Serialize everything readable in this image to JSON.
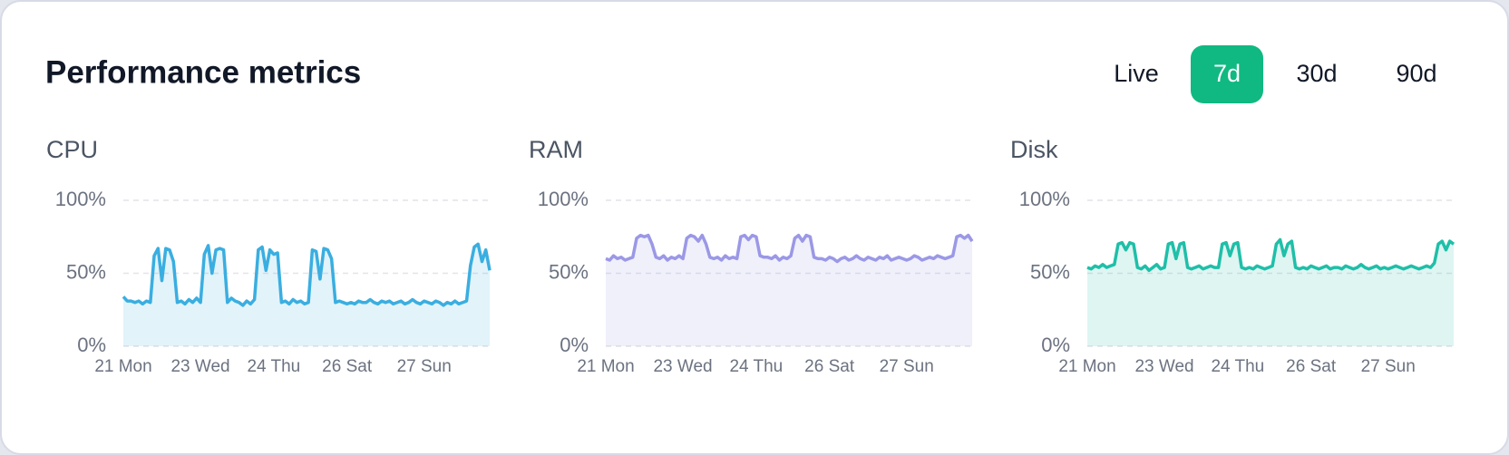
{
  "header": {
    "title": "Performance metrics"
  },
  "tabs": [
    {
      "label": "Live"
    },
    {
      "label": "7d",
      "selected": true
    },
    {
      "label": "30d"
    },
    {
      "label": "90d"
    }
  ],
  "chart_data": [
    {
      "type": "area",
      "title": "CPU",
      "color": "#3aaee0",
      "values": [
        34,
        31,
        31,
        30,
        31,
        29,
        31,
        30,
        62,
        67,
        45,
        67,
        66,
        58,
        30,
        31,
        29,
        32,
        30,
        33,
        30,
        63,
        69,
        50,
        66,
        67,
        66,
        30,
        33,
        31,
        30,
        28,
        31,
        29,
        32,
        66,
        68,
        52,
        66,
        63,
        64,
        30,
        31,
        29,
        32,
        30,
        31,
        29,
        30,
        66,
        65,
        46,
        67,
        66,
        60,
        30,
        31,
        30,
        29,
        30,
        29,
        31,
        30,
        30,
        32,
        30,
        29,
        31,
        30,
        31,
        29,
        30,
        31,
        29,
        30,
        32,
        30,
        29,
        31,
        30,
        29,
        31,
        30,
        28,
        30,
        29,
        31,
        29,
        30,
        31,
        55,
        68,
        70,
        58,
        66,
        52
      ],
      "xlim": [
        0,
        95
      ],
      "xticks": [
        {
          "value": 0,
          "label": "21 Mon"
        },
        {
          "value": 20,
          "label": "23 Wed"
        },
        {
          "value": 39,
          "label": "24 Thu"
        },
        {
          "value": 58,
          "label": "26 Sat"
        },
        {
          "value": 78,
          "label": "27 Sun"
        }
      ],
      "ylim": [
        0,
        100
      ],
      "yticks": [
        {
          "value": 0,
          "label": "0%"
        },
        {
          "value": 50,
          "label": "50%"
        },
        {
          "value": 100,
          "label": "100%"
        }
      ],
      "grid": true
    },
    {
      "type": "area",
      "title": "RAM",
      "color": "#9b98e6",
      "values": [
        60,
        59,
        62,
        60,
        61,
        59,
        60,
        61,
        74,
        76,
        75,
        76,
        70,
        61,
        60,
        62,
        59,
        61,
        60,
        62,
        60,
        74,
        76,
        75,
        72,
        76,
        70,
        61,
        60,
        61,
        59,
        62,
        60,
        61,
        60,
        75,
        76,
        73,
        76,
        75,
        62,
        61,
        61,
        60,
        62,
        59,
        61,
        60,
        62,
        74,
        76,
        72,
        76,
        75,
        61,
        60,
        60,
        59,
        61,
        60,
        58,
        60,
        61,
        59,
        60,
        62,
        60,
        59,
        61,
        60,
        59,
        61,
        60,
        62,
        59,
        60,
        61,
        60,
        59,
        60,
        62,
        61,
        59,
        60,
        61,
        60,
        62,
        61,
        60,
        61,
        62,
        75,
        76,
        74,
        76,
        72
      ],
      "xlim": [
        0,
        95
      ],
      "xticks": [
        {
          "value": 0,
          "label": "21 Mon"
        },
        {
          "value": 20,
          "label": "23 Wed"
        },
        {
          "value": 39,
          "label": "24 Thu"
        },
        {
          "value": 58,
          "label": "26 Sat"
        },
        {
          "value": 78,
          "label": "27 Sun"
        }
      ],
      "ylim": [
        0,
        100
      ],
      "yticks": [
        {
          "value": 0,
          "label": "0%"
        },
        {
          "value": 50,
          "label": "50%"
        },
        {
          "value": 100,
          "label": "100%"
        }
      ],
      "grid": true
    },
    {
      "type": "area",
      "title": "Disk",
      "color": "#1fbfa8",
      "values": [
        54,
        53,
        55,
        54,
        56,
        54,
        55,
        56,
        70,
        71,
        66,
        71,
        70,
        54,
        53,
        55,
        52,
        54,
        56,
        53,
        54,
        70,
        71,
        60,
        70,
        71,
        54,
        53,
        54,
        55,
        53,
        54,
        55,
        54,
        54,
        70,
        71,
        62,
        70,
        71,
        54,
        53,
        54,
        53,
        55,
        54,
        53,
        54,
        55,
        70,
        73,
        62,
        70,
        72,
        54,
        53,
        54,
        53,
        55,
        54,
        53,
        54,
        55,
        53,
        54,
        54,
        53,
        55,
        54,
        53,
        54,
        56,
        54,
        53,
        54,
        55,
        53,
        54,
        53,
        54,
        55,
        54,
        53,
        54,
        55,
        54,
        53,
        54,
        55,
        54,
        57,
        70,
        72,
        66,
        72,
        70
      ],
      "xlim": [
        0,
        95
      ],
      "xticks": [
        {
          "value": 0,
          "label": "21 Mon"
        },
        {
          "value": 20,
          "label": "23 Wed"
        },
        {
          "value": 39,
          "label": "24 Thu"
        },
        {
          "value": 58,
          "label": "26 Sat"
        },
        {
          "value": 78,
          "label": "27 Sun"
        }
      ],
      "ylim": [
        0,
        100
      ],
      "yticks": [
        {
          "value": 0,
          "label": "0%"
        },
        {
          "value": 50,
          "label": "50%"
        },
        {
          "value": 100,
          "label": "100%"
        }
      ],
      "grid": true
    }
  ]
}
